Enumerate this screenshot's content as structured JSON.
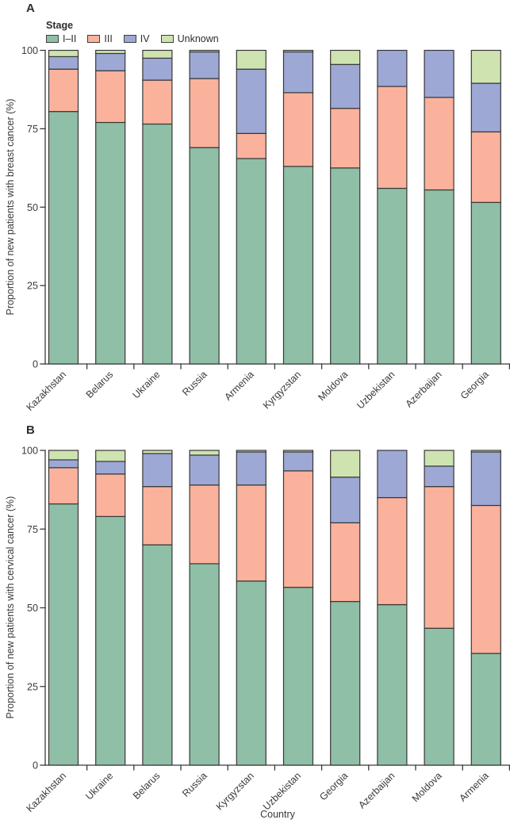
{
  "legend": {
    "title": "Stage",
    "items": [
      {
        "label": "I–II",
        "color": "#8fbfa6"
      },
      {
        "label": "III",
        "color": "#fab29c"
      },
      {
        "label": "IV",
        "color": "#9da8d5"
      },
      {
        "label": "Unknown",
        "color": "#cfe3b0"
      }
    ]
  },
  "chart_data": [
    {
      "id": "A",
      "panel_label": "A",
      "type": "bar",
      "stacked": true,
      "ylabel": "Proportion of new patients with breast cancer (%)",
      "xlabel": "",
      "ylim": [
        0,
        100
      ],
      "yticks": [
        0,
        25,
        50,
        75,
        100
      ],
      "grid": false,
      "legend_position": "top-left",
      "categories": [
        "Kazakhstan",
        "Belarus",
        "Ukraine",
        "Russia",
        "Armenia",
        "Kyrgyzstan",
        "Moldova",
        "Uzbekistan",
        "Azerbaijan",
        "Georgia"
      ],
      "series": [
        {
          "name": "I–II",
          "color": "#8fbfa6",
          "values": [
            80.5,
            77,
            76.5,
            69,
            65.5,
            63,
            62.5,
            56,
            55.5,
            51.5
          ]
        },
        {
          "name": "III",
          "color": "#fab29c",
          "values": [
            13.5,
            16.5,
            14,
            22,
            8,
            23.5,
            19,
            32.5,
            29.5,
            22.5
          ]
        },
        {
          "name": "IV",
          "color": "#9da8d5",
          "values": [
            4,
            5.5,
            7,
            8.5,
            20.5,
            13,
            14,
            11.5,
            15,
            15.5
          ]
        },
        {
          "name": "Unknown",
          "color": "#cfe3b0",
          "values": [
            2,
            1,
            2.5,
            0.5,
            6,
            0.5,
            4.5,
            0,
            0,
            10.5
          ]
        }
      ]
    },
    {
      "id": "B",
      "panel_label": "B",
      "type": "bar",
      "stacked": true,
      "ylabel": "Proportion of new patients with cervical cancer (%)",
      "xlabel": "Country",
      "ylim": [
        0,
        100
      ],
      "yticks": [
        0,
        25,
        50,
        75,
        100
      ],
      "grid": false,
      "categories": [
        "Kazakhstan",
        "Ukraine",
        "Belarus",
        "Russia",
        "Kyrgyzstan",
        "Uzbekistan",
        "Georgia",
        "Azerbaijan",
        "Moldova",
        "Armenia"
      ],
      "series": [
        {
          "name": "I–II",
          "color": "#8fbfa6",
          "values": [
            83,
            79,
            70,
            64,
            58.5,
            56.5,
            52,
            51,
            43.5,
            35.5
          ]
        },
        {
          "name": "III",
          "color": "#fab29c",
          "values": [
            11.5,
            13.5,
            18.5,
            25,
            30.5,
            37,
            25,
            34,
            45,
            47
          ]
        },
        {
          "name": "IV",
          "color": "#9da8d5",
          "values": [
            2.5,
            4,
            10.5,
            9.5,
            10.5,
            6,
            14.5,
            15,
            6.5,
            17
          ]
        },
        {
          "name": "Unknown",
          "color": "#cfe3b0",
          "values": [
            3,
            3.5,
            1,
            1.5,
            0.5,
            0.5,
            8.5,
            0,
            5,
            0.5
          ]
        }
      ]
    }
  ]
}
